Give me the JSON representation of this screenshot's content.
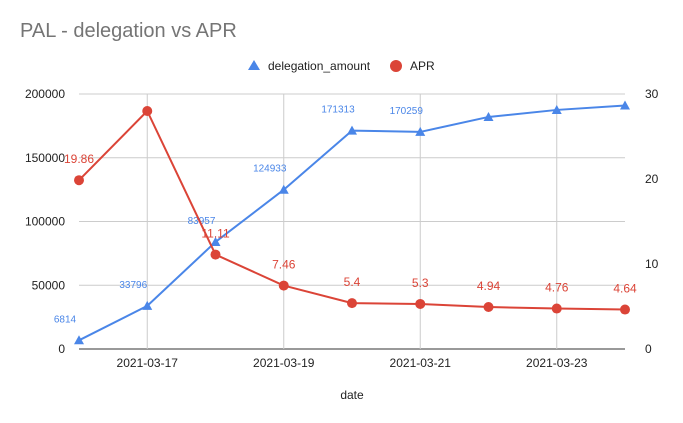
{
  "chart_data": {
    "type": "line",
    "title": "PAL - delegation vs APR",
    "xlabel": "date",
    "x": [
      "2021-03-16",
      "2021-03-17",
      "2021-03-18",
      "2021-03-19",
      "2021-03-20",
      "2021-03-21",
      "2021-03-22",
      "2021-03-23",
      "2021-03-24"
    ],
    "x_tick_labels": [
      "2021-03-17",
      "2021-03-19",
      "2021-03-21",
      "2021-03-23"
    ],
    "y_left_ticks": [
      "0",
      "50000",
      "100000",
      "150000",
      "200000"
    ],
    "y_right_ticks": [
      "0",
      "10",
      "20",
      "30"
    ],
    "ylim_left": [
      0,
      200000
    ],
    "ylim_right": [
      0,
      30
    ],
    "grid": true,
    "legend_position": "top",
    "series": [
      {
        "name": "delegation_amount",
        "axis": "left",
        "marker": "triangle",
        "color": "#4a86e8",
        "values": [
          6814,
          33796,
          83957,
          124933,
          171313,
          170259,
          182000,
          187500,
          191000
        ],
        "labels": [
          "6814",
          "33796",
          "83957",
          "124933",
          "171313",
          "170259",
          "",
          "",
          ""
        ]
      },
      {
        "name": "APR",
        "axis": "right",
        "marker": "circle",
        "color": "#db4437",
        "values": [
          19.86,
          28,
          11.11,
          7.46,
          5.4,
          5.3,
          4.94,
          4.76,
          4.64
        ],
        "labels": [
          "19.86",
          "",
          "11.11",
          "7.46",
          "5.4",
          "5.3",
          "4.94",
          "4.76",
          "4.64"
        ]
      }
    ]
  }
}
